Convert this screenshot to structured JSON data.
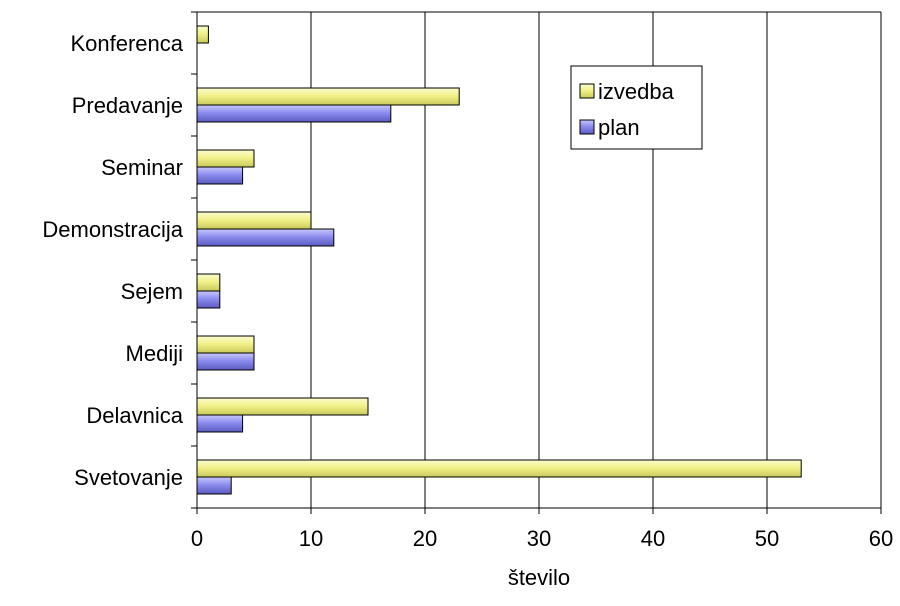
{
  "chart_data": {
    "type": "bar",
    "orientation": "horizontal",
    "categories": [
      "Konferenca",
      "Predavanje",
      "Seminar",
      "Demonstracija",
      "Sejem",
      "Mediji",
      "Delavnica",
      "Svetovanje"
    ],
    "series": [
      {
        "name": "izvedba",
        "values": [
          1,
          23,
          5,
          10,
          2,
          5,
          15,
          53
        ],
        "color": "#f5f59a"
      },
      {
        "name": "plan",
        "values": [
          0,
          17,
          4,
          12,
          2,
          5,
          4,
          3
        ],
        "color": "#8f8fe8"
      }
    ],
    "xlabel": "število",
    "ylabel": "",
    "title": "",
    "xlim": [
      0,
      60
    ],
    "xticks": [
      0,
      10,
      20,
      30,
      40,
      50,
      60
    ],
    "grid": "vertical",
    "legend": "top-right",
    "legend_order": [
      "izvedba",
      "plan"
    ]
  }
}
